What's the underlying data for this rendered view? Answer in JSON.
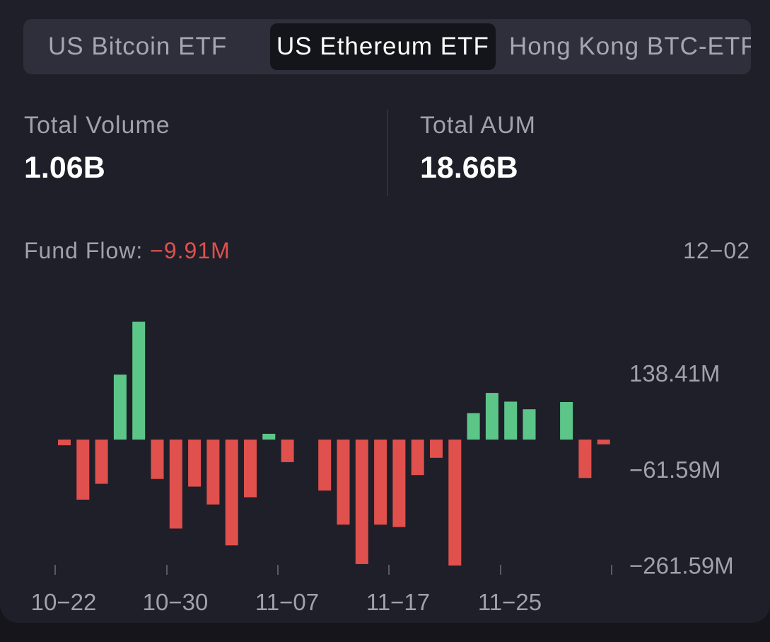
{
  "tabs": [
    {
      "label": "US Bitcoin ETF",
      "active": false
    },
    {
      "label": "US Ethereum ETF",
      "active": true
    },
    {
      "label": "Hong Kong BTC-ETF",
      "active": false
    }
  ],
  "stats": {
    "total_volume_label": "Total Volume",
    "total_volume_value": "1.06B",
    "total_aum_label": "Total AUM",
    "total_aum_value": "18.66B"
  },
  "fund_flow": {
    "label": "Fund Flow:",
    "value": "−9.91M",
    "date": "12−02"
  },
  "colors": {
    "positive": "#5cc689",
    "negative": "#e0504d",
    "axis_text": "#a1a1ac"
  },
  "chart_data": {
    "type": "bar",
    "y_tick_labels": [
      "138.41M",
      "−61.59M",
      "−261.59M"
    ],
    "y_ticks": [
      138.41,
      -61.59,
      -261.59
    ],
    "x_tick_labels": [
      "10−22",
      "10−30",
      "11−07",
      "11−17",
      "11−25"
    ],
    "values": [
      -12,
      -125,
      -92,
      135,
      245,
      -82,
      -185,
      -98,
      -135,
      -220,
      -120,
      12,
      -47,
      null,
      -106,
      -177,
      -259,
      -177,
      -182,
      -74,
      -38,
      -262,
      55,
      97,
      79,
      63,
      null,
      78,
      -80,
      -9.91
    ]
  }
}
